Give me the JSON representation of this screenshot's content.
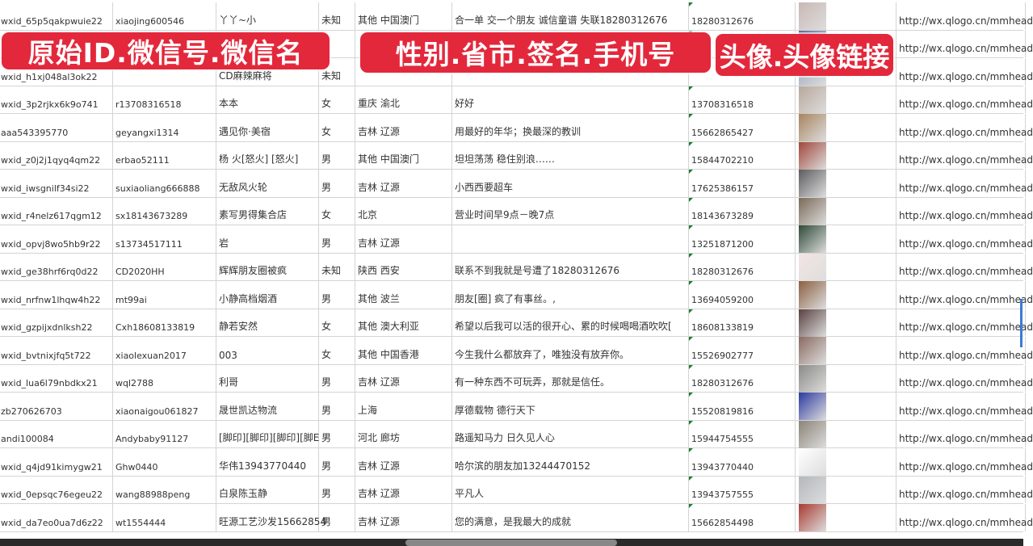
{
  "banners": [
    "原始ID.微信号.微信名",
    "性别.省市.签名.手机号",
    "头像.头像链接"
  ],
  "rows": [
    {
      "id": "wxid_65p5qakpwuie22",
      "wechat": "xiaojing600546",
      "name": "丫丫~小",
      "gender": "未知",
      "region": "其他 中国澳门",
      "signature": "合一单 交一个朋友 诚信童谱 失联18280312676",
      "phone": "18280312676",
      "avatar_color": "#c9b8b4",
      "url": "http://wx.qlogo.cn/mmhead"
    },
    {
      "id": "",
      "wechat": "",
      "name": "",
      "gender": "",
      "region": "",
      "signature": "",
      "phone": "",
      "avatar_color": "#5a6a9a",
      "url": "http://wx.qlogo.cn/mmhead"
    },
    {
      "id": "wxid_h1xj048al3ok22",
      "wechat": "",
      "name": "CD麻辣麻将",
      "gender": "未知",
      "region": "",
      "signature": "",
      "phone": "",
      "avatar_color": "#9aa5b5",
      "url": "http://wx.qlogo.cn/mmhead"
    },
    {
      "id": "wxid_3p2rjkx6k9o741",
      "wechat": "r13708316518",
      "name": "本本",
      "gender": "女",
      "region": "重庆 渝北",
      "signature": "好好",
      "phone": "13708316518",
      "avatar_color": "#b8a89c",
      "url": "http://wx.qlogo.cn/mmhead"
    },
    {
      "id": "aaa543395770",
      "wechat": "geyangxi1314",
      "name": "遇见你·美宿",
      "gender": "女",
      "region": "吉林 辽源",
      "signature": "用最好的年华；换最深的教训",
      "phone": "15662865427",
      "avatar_color": "#a88460",
      "url": "http://wx.qlogo.cn/mmhead"
    },
    {
      "id": "wxid_z0j2j1qyq4qm22",
      "wechat": "erbao52111",
      "name": "杨 火[怒火] [怒火]",
      "gender": "男",
      "region": "其他 中国澳门",
      "signature": "坦坦荡荡 稳住别浪……",
      "phone": "15844702210",
      "avatar_color": "#a0463a",
      "url": "http://wx.qlogo.cn/mmhead"
    },
    {
      "id": "wxid_iwsgnilf34si22",
      "wechat": "suxiaoliang666888",
      "name": "无敌风火轮",
      "gender": "男",
      "region": "吉林 辽源",
      "signature": "小西西要超车",
      "phone": "17625386157",
      "avatar_color": "#5c5c60",
      "url": "http://wx.qlogo.cn/mmhead"
    },
    {
      "id": "wxid_r4nelz617qgm12",
      "wechat": "sx18143673289",
      "name": "素写男得集合店",
      "gender": "女",
      "region": "北京",
      "signature": "营业时间早9点－晚7点",
      "phone": "18143673289",
      "avatar_color": "#7a6a58",
      "url": "http://wx.qlogo.cn/mmhead"
    },
    {
      "id": "wxid_opvj8wo5hb9r22",
      "wechat": "s13734517111",
      "name": "岩",
      "gender": "男",
      "region": "吉林 辽源",
      "signature": "",
      "phone": "13251871200",
      "avatar_color": "#2e4a38",
      "url": "http://wx.qlogo.cn/mmhead"
    },
    {
      "id": "wxid_ge38hrf6rq0d22",
      "wechat": "CD2020HH",
      "name": "辉辉朋友圈被疯",
      "gender": "未知",
      "region": "陕西 西安",
      "signature": "联系不到我就是号遭了18280312676",
      "phone": "18280312676",
      "avatar_color": "#f3e6e2",
      "url": "http://wx.qlogo.cn/mmhead"
    },
    {
      "id": "wxid_nrfnw1lhqw4h22",
      "wechat": "mt99ai",
      "name": "小静高档烟酒",
      "gender": "男",
      "region": "其他 波兰",
      "signature": "朋友[圈] 疯了有事丝。,",
      "phone": "13694059200",
      "avatar_color": "#8a6040",
      "url": "http://wx.qlogo.cn/mmhead"
    },
    {
      "id": "wxid_gzpijxdnlksh22",
      "wechat": "Cxh18608133819",
      "name": "静若安然",
      "gender": "女",
      "region": "其他 澳大利亚",
      "signature": "希望以后我可以活的很开心、累的时候喝喝酒吹吹[",
      "phone": "18608133819",
      "avatar_color": "#5a4040",
      "url": "http://wx.qlogo.cn/mmhead"
    },
    {
      "id": "wxid_bvtnixjfq5t722",
      "wechat": "xiaolexuan2017",
      "name": "003",
      "gender": "女",
      "region": "其他 中国香港",
      "signature": "今生我什么都放弃了，唯独没有放弃你。",
      "phone": "15526902777",
      "avatar_color": "#8a6a60",
      "url": "http://wx.qlogo.cn/mmhead"
    },
    {
      "id": "wxid_lua6l79nbdkx21",
      "wechat": "wql2788",
      "name": "利哥",
      "gender": "男",
      "region": "吉林 辽源",
      "signature": "有一种东西不可玩弄，那就是信任。",
      "phone": "18280312676",
      "avatar_color": "#8a8a86",
      "url": "http://wx.qlogo.cn/mmhead"
    },
    {
      "id": "zb270626703",
      "wechat": "xiaonaigou061827",
      "name": "晟世凯达物流",
      "gender": "男",
      "region": "上海",
      "signature": "厚德载物 德行天下",
      "phone": "15520819816",
      "avatar_color": "#2c3aa0",
      "url": "http://wx.qlogo.cn/mmhead"
    },
    {
      "id": "andi100084",
      "wechat": "Andybaby91127",
      "name": "[脚印][脚印][脚印][脚E",
      "gender": "男",
      "region": "河北 廊坊",
      "signature": "路遥知马力 日久见人心",
      "phone": "15944754555",
      "avatar_color": "#8a8478",
      "url": "http://wx.qlogo.cn/mmhead"
    },
    {
      "id": "wxid_q4jd91kimygw21",
      "wechat": "Ghw0440",
      "name": "华伟13943770440",
      "gender": "男",
      "region": "吉林 辽源",
      "signature": "哈尔滨的朋友加13244470152",
      "phone": "13943770440",
      "avatar_color": "#ffffff",
      "url": "http://wx.qlogo.cn/mmhead"
    },
    {
      "id": "wxid_0epsqc76egeu22",
      "wechat": "wang88988peng",
      "name": "白泉陈玉静",
      "gender": "男",
      "region": "吉林 辽源",
      "signature": "平凡人",
      "phone": "13943757555",
      "avatar_color": "#b4b8bc",
      "url": "http://wx.qlogo.cn/mmhead"
    },
    {
      "id": "wxid_da7eo0ua7d6z22",
      "wechat": "wt1554444",
      "name": "旺源工艺沙发15662854",
      "gender": "男",
      "region": "吉林 辽源",
      "signature": "您的满意，是我最大的成就",
      "phone": "15662854498",
      "avatar_color": "#a83a30",
      "url": "http://wx.qlogo.cn/mmhead"
    }
  ]
}
